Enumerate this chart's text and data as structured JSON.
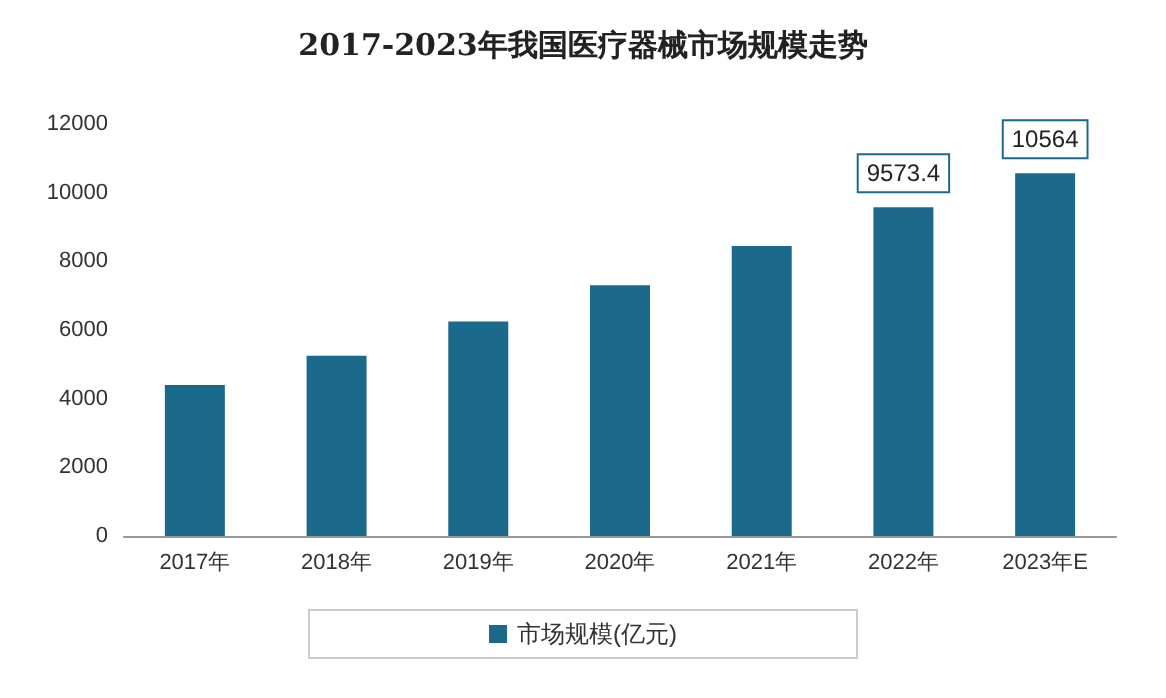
{
  "chart_data": {
    "type": "bar",
    "title": "2017-2023年我国医疗器械市场规模走势",
    "categories": [
      "2017年",
      "2018年",
      "2019年",
      "2020年",
      "2021年",
      "2022年",
      "2023年E"
    ],
    "series": [
      {
        "name": "市场规模(亿元)",
        "color": "#1b6a8c",
        "values": [
          4400,
          5250,
          6250,
          7300,
          8450,
          9573.4,
          10564
        ],
        "value_labels": [
          null,
          null,
          null,
          null,
          null,
          "9573.4",
          "10564"
        ]
      }
    ],
    "ylim": [
      0,
      12000
    ],
    "yticks": [
      0,
      2000,
      4000,
      6000,
      8000,
      10000,
      12000
    ],
    "grid": false,
    "legend": "bottom"
  }
}
